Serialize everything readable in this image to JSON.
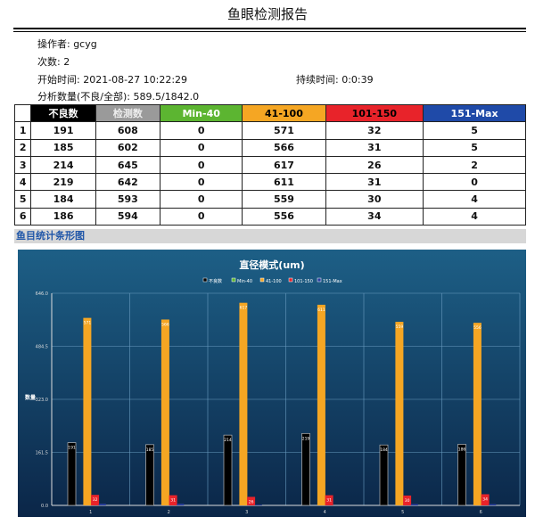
{
  "title": "鱼眼检测报告",
  "info": {
    "operator": "操作者: gcyg",
    "count": "次数: 2",
    "start": "开始时间: 2021-08-27 10:22:29",
    "duration": "持续时间: 0:0:39",
    "analysis": "分析数量(不良/全部): 589.5/1842.0"
  },
  "table": {
    "headers": [
      "",
      "不良数",
      "检测数",
      "Min-40",
      "41-100",
      "101-150",
      "151-Max"
    ],
    "header_colors": [
      "#ffffff",
      "#000000",
      "#9a9a9a",
      "#5cb531",
      "#f5a623",
      "#e8232a",
      "#1f4aa8"
    ],
    "header_text_colors": [
      "#000",
      "#fff",
      "#eee",
      "#fff",
      "#000",
      "#000",
      "#fff"
    ],
    "rows": [
      [
        "1",
        "191",
        "608",
        "0",
        "571",
        "32",
        "5"
      ],
      [
        "2",
        "185",
        "602",
        "0",
        "566",
        "31",
        "5"
      ],
      [
        "3",
        "214",
        "645",
        "0",
        "617",
        "26",
        "2"
      ],
      [
        "4",
        "219",
        "642",
        "0",
        "611",
        "31",
        "0"
      ],
      [
        "5",
        "184",
        "593",
        "0",
        "559",
        "30",
        "4"
      ],
      [
        "6",
        "186",
        "594",
        "0",
        "556",
        "34",
        "4"
      ]
    ]
  },
  "section_title": "鱼目统计条形图",
  "chart_data": {
    "type": "bar",
    "title": "直径模式(um)",
    "ylabel": "数量",
    "categories": [
      "1",
      "2",
      "3",
      "4",
      "5",
      "6"
    ],
    "ylim": [
      0,
      646.0
    ],
    "yticks": [
      "0.0",
      "161.5",
      "323.0",
      "484.5",
      "646.0"
    ],
    "grid": true,
    "legend_position": "top",
    "series": [
      {
        "name": "不良数",
        "color": "#000000",
        "values": [
          191,
          185,
          214,
          219,
          184,
          186
        ]
      },
      {
        "name": "Min-40",
        "color": "#5cb531",
        "values": [
          0,
          0,
          0,
          0,
          0,
          0
        ]
      },
      {
        "name": "41-100",
        "color": "#f5a623",
        "values": [
          571,
          566,
          617,
          611,
          559,
          556
        ]
      },
      {
        "name": "101-150",
        "color": "#e8232a",
        "values": [
          32,
          31,
          26,
          31,
          30,
          34
        ]
      },
      {
        "name": "151-Max",
        "color": "#2a3fa0",
        "values": [
          5,
          5,
          2,
          0,
          4,
          4
        ]
      }
    ]
  }
}
